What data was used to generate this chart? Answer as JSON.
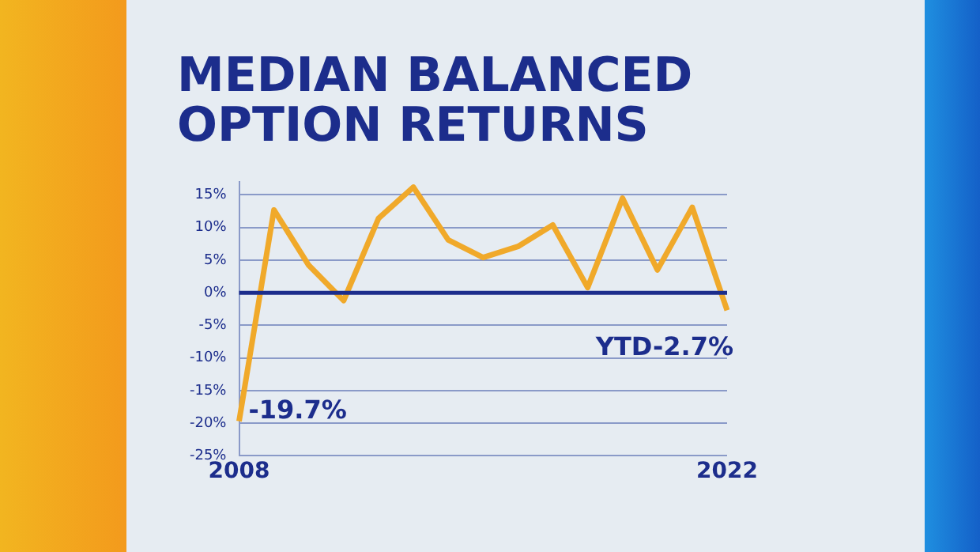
{
  "chart_data": {
    "type": "line",
    "title": [
      "MEDIAN BALANCED",
      "OPTION RETURNS"
    ],
    "categories": [
      "2008",
      null,
      null,
      null,
      null,
      null,
      null,
      null,
      null,
      null,
      null,
      null,
      null,
      null,
      "2022"
    ],
    "series": [
      {
        "color": "#f0a92a",
        "values": [
          -19.7,
          12.7,
          4.2,
          -1.2,
          11.4,
          16.2,
          8.1,
          5.4,
          7.1,
          10.4,
          0.8,
          14.5,
          3.5,
          13.1,
          -2.7
        ]
      }
    ],
    "ylim": [
      -25,
      17
    ],
    "yticks": [
      {
        "value": -25,
        "label": "-25%"
      },
      {
        "value": -20,
        "label": "-20%"
      },
      {
        "value": -15,
        "label": "-15%"
      },
      {
        "value": -10,
        "label": "-10%"
      },
      {
        "value": -5,
        "label": "-5%"
      },
      {
        "value": 0,
        "label": "0%"
      },
      {
        "value": 5,
        "label": "5%"
      },
      {
        "value": 10,
        "label": "10%"
      },
      {
        "value": 15,
        "label": "15%"
      }
    ],
    "ref_lines": [
      {
        "axis": "y",
        "value": 0,
        "color": "#1c2d8c"
      }
    ],
    "annotations": [
      {
        "text": "-19.7%",
        "x": "2008",
        "y": -19.7
      },
      {
        "text": "YTD-2.7%",
        "x": "2022",
        "y": -2.7
      }
    ],
    "grid": "y",
    "legend": false,
    "marker": "none",
    "line_style": "solid"
  }
}
